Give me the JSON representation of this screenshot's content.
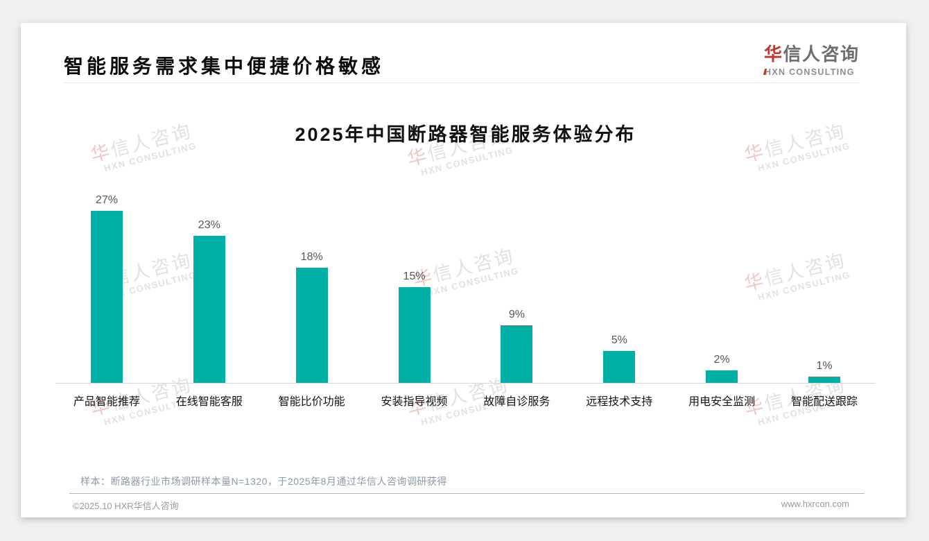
{
  "header": {
    "title": "智能服务需求集中便捷价格敏感"
  },
  "logo": {
    "cn_first": "华",
    "cn_rest": "信人咨询",
    "en": "HXN CONSULTING",
    "red_color": "#c4382c"
  },
  "watermark": {
    "line1": "华信人咨询",
    "line2": "HXN CONSULTING"
  },
  "chart_data": {
    "type": "bar",
    "title": "2025年中国断路器智能服务体验分布",
    "categories": [
      "产品智能推荐",
      "在线智能客服",
      "智能比价功能",
      "安装指导视频",
      "故障自诊服务",
      "远程技术支持",
      "用电安全监测",
      "智能配送跟踪"
    ],
    "values": [
      27,
      23,
      18,
      15,
      9,
      5,
      2,
      1
    ],
    "unit": "%",
    "bar_color": "#00B0A5",
    "xlabel": "",
    "ylabel": "",
    "ylim": [
      0,
      30
    ],
    "grid": false,
    "legend": "none",
    "value_label_color": "#565656"
  },
  "footnote": "样本：断路器行业市场调研样本量N=1320，于2025年8月通过华信人咨询调研获得",
  "footer": {
    "left": "©2025.10 HXR华信人咨询",
    "right": "www.hxrcon.com"
  }
}
